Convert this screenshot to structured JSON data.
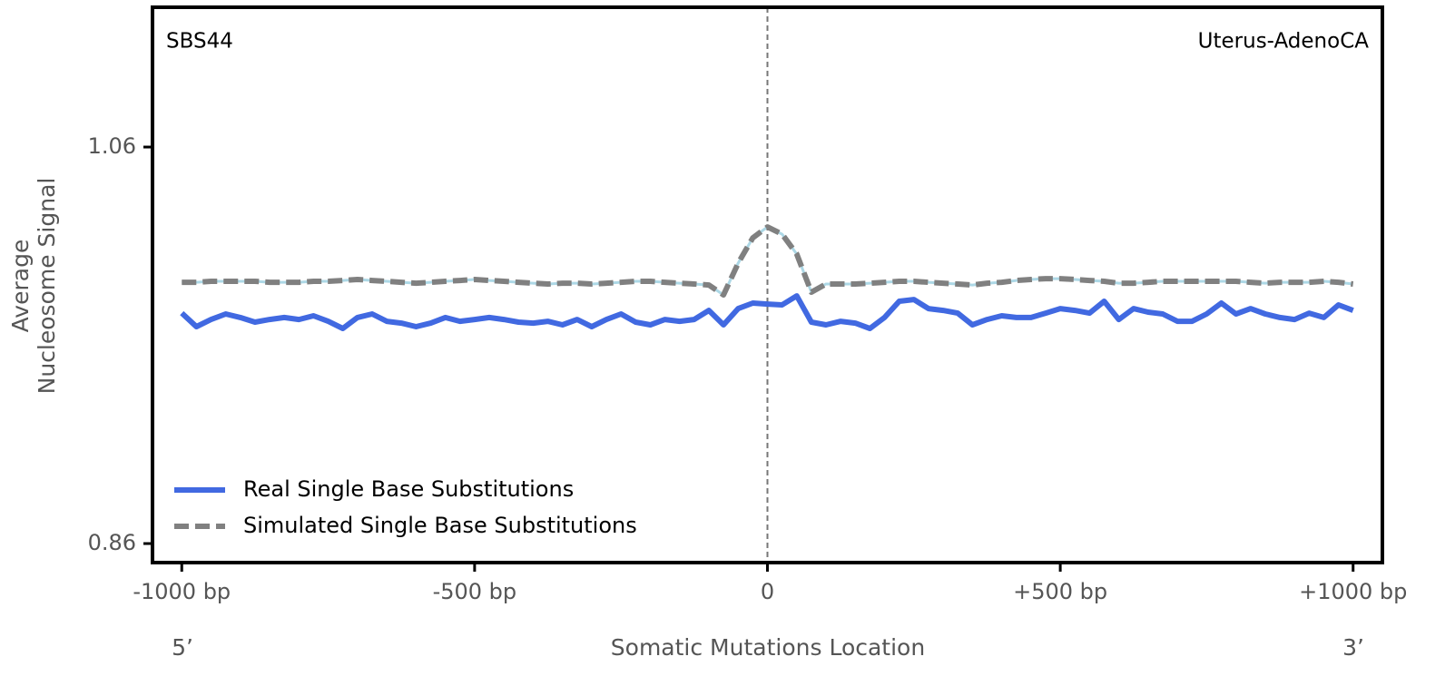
{
  "chart_data": {
    "type": "line",
    "annotations": {
      "left": "SBS44",
      "right": "Uterus-AdenoCA",
      "x_start": "5’",
      "x_end": "3’"
    },
    "xlabel": "Somatic Mutations Location",
    "ylabel": [
      "Average",
      "Nucleosome Signal"
    ],
    "xlim": [
      -1050,
      1050
    ],
    "ylim": [
      0.8504,
      1.1305
    ],
    "xticks": [
      {
        "value": -1000,
        "label": "-1000 bp"
      },
      {
        "value": -500,
        "label": "-500 bp"
      },
      0,
      {
        "value": 500,
        "label": "+500 bp"
      },
      {
        "value": 1000,
        "label": "+1000 bp"
      }
    ],
    "yticks": [
      0.86,
      1.06
    ],
    "vline": 0,
    "grid": false,
    "legend": "lower left",
    "x": [
      -1000,
      -975,
      -950,
      -925,
      -900,
      -875,
      -850,
      -825,
      -800,
      -775,
      -750,
      -725,
      -700,
      -675,
      -650,
      -625,
      -600,
      -575,
      -550,
      -525,
      -500,
      -475,
      -450,
      -425,
      -400,
      -375,
      -350,
      -325,
      -300,
      -275,
      -250,
      -225,
      -200,
      -175,
      -150,
      -125,
      -100,
      -75,
      -50,
      -25,
      0,
      25,
      50,
      75,
      100,
      125,
      150,
      175,
      200,
      225,
      250,
      275,
      300,
      325,
      350,
      375,
      400,
      425,
      450,
      475,
      500,
      525,
      550,
      575,
      600,
      625,
      650,
      675,
      700,
      725,
      750,
      775,
      800,
      825,
      850,
      875,
      900,
      925,
      950,
      975,
      1000
    ],
    "series": [
      {
        "name": "Real Single Base Substitutions",
        "color": "#4169e1",
        "dash": false,
        "values": [
          0.9762,
          0.9694,
          0.973,
          0.9758,
          0.974,
          0.9717,
          0.973,
          0.974,
          0.973,
          0.9749,
          0.9721,
          0.9685,
          0.974,
          0.9758,
          0.9721,
          0.9712,
          0.9694,
          0.9712,
          0.974,
          0.9721,
          0.973,
          0.974,
          0.973,
          0.9717,
          0.9712,
          0.9721,
          0.9703,
          0.973,
          0.9694,
          0.973,
          0.9758,
          0.9717,
          0.9703,
          0.973,
          0.9721,
          0.973,
          0.9776,
          0.9703,
          0.9785,
          0.9813,
          0.9808,
          0.9804,
          0.9849,
          0.9717,
          0.9703,
          0.9721,
          0.9712,
          0.9685,
          0.974,
          0.9822,
          0.9831,
          0.9785,
          0.9776,
          0.9762,
          0.9703,
          0.973,
          0.9749,
          0.974,
          0.974,
          0.9762,
          0.9785,
          0.9776,
          0.9762,
          0.9822,
          0.973,
          0.9785,
          0.9767,
          0.9758,
          0.9721,
          0.9721,
          0.9758,
          0.9813,
          0.9758,
          0.9785,
          0.9758,
          0.974,
          0.973,
          0.9762,
          0.974,
          0.9804,
          0.9776
        ]
      },
      {
        "name": "Simulated Single Base Substitutions",
        "color": "#808080",
        "dash": true,
        "underlay_color": "#add8e6",
        "values": [
          0.9918,
          0.9918,
          0.9923,
          0.9923,
          0.9923,
          0.9923,
          0.9918,
          0.9918,
          0.9918,
          0.9923,
          0.9923,
          0.9927,
          0.9932,
          0.9927,
          0.9923,
          0.9918,
          0.9913,
          0.9918,
          0.9923,
          0.9927,
          0.9932,
          0.9927,
          0.9923,
          0.9918,
          0.9913,
          0.9909,
          0.9913,
          0.9913,
          0.9909,
          0.9913,
          0.9918,
          0.9923,
          0.9923,
          0.9918,
          0.9913,
          0.9909,
          0.9904,
          0.9854,
          1.0014,
          1.0142,
          1.0197,
          1.0161,
          1.006,
          0.9868,
          0.9909,
          0.9909,
          0.9909,
          0.9913,
          0.9918,
          0.9923,
          0.9923,
          0.9918,
          0.9913,
          0.9909,
          0.9904,
          0.9913,
          0.9918,
          0.9927,
          0.9932,
          0.9936,
          0.9936,
          0.9932,
          0.9927,
          0.9923,
          0.9913,
          0.9913,
          0.9918,
          0.9923,
          0.9923,
          0.9923,
          0.9923,
          0.9923,
          0.9923,
          0.9918,
          0.9913,
          0.9918,
          0.9918,
          0.9918,
          0.9923,
          0.9918,
          0.9909
        ]
      }
    ]
  }
}
